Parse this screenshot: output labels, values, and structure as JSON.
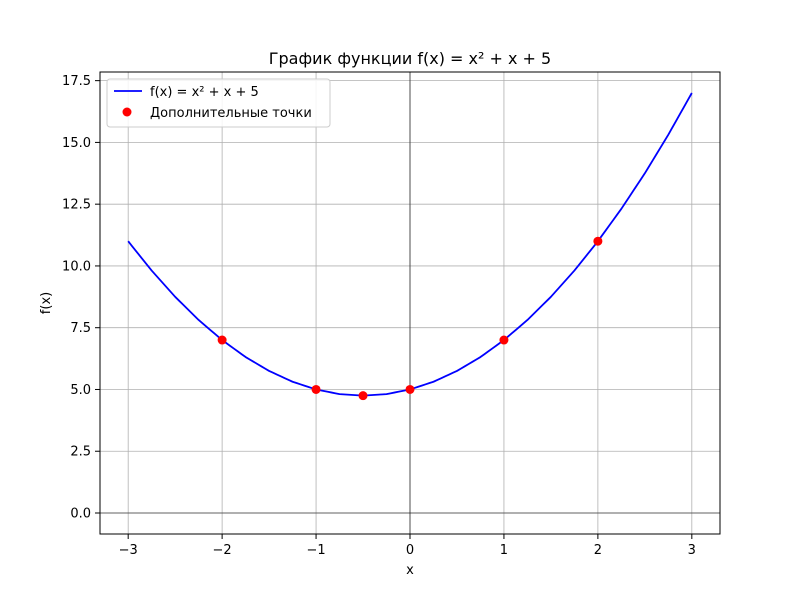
{
  "chart_data": {
    "type": "line",
    "title": "График функции f(x) = x² + x + 5",
    "xlabel": "x",
    "ylabel": "f(x)",
    "xlim": [
      -3.3,
      3.3
    ],
    "ylim": [
      -0.85,
      17.85
    ],
    "grid": true,
    "legend_position": "top-left",
    "x_ticks": [
      -3,
      -2,
      -1,
      0,
      1,
      2,
      3
    ],
    "x_tick_labels": [
      "−3",
      "−2",
      "−1",
      "0",
      "1",
      "2",
      "3"
    ],
    "y_ticks": [
      0.0,
      2.5,
      5.0,
      7.5,
      10.0,
      12.5,
      15.0,
      17.5
    ],
    "y_tick_labels": [
      "0.0",
      "2.5",
      "5.0",
      "7.5",
      "10.0",
      "12.5",
      "15.0",
      "17.5"
    ],
    "reference_lines": {
      "x": 0,
      "y": 0
    },
    "series": [
      {
        "name": "f(x) = x² + x + 5",
        "kind": "line",
        "color": "#0000ff",
        "x": [
          -3.0,
          -2.75,
          -2.5,
          -2.25,
          -2.0,
          -1.75,
          -1.5,
          -1.25,
          -1.0,
          -0.75,
          -0.5,
          -0.25,
          0.0,
          0.25,
          0.5,
          0.75,
          1.0,
          1.25,
          1.5,
          1.75,
          2.0,
          2.25,
          2.5,
          2.75,
          3.0
        ],
        "y": [
          11.0,
          9.8125,
          8.75,
          7.8125,
          7.0,
          6.3125,
          5.75,
          5.3125,
          5.0,
          4.8125,
          4.75,
          4.8125,
          5.0,
          5.3125,
          5.75,
          6.3125,
          7.0,
          7.8125,
          8.75,
          9.8125,
          11.0,
          12.3125,
          13.75,
          15.3125,
          17.0
        ]
      },
      {
        "name": "Дополнительные точки",
        "kind": "scatter",
        "color": "#ff0000",
        "x": [
          -2,
          -1,
          -0.5,
          0,
          1,
          2
        ],
        "y": [
          7,
          5,
          4.75,
          5,
          7,
          11
        ]
      }
    ]
  }
}
